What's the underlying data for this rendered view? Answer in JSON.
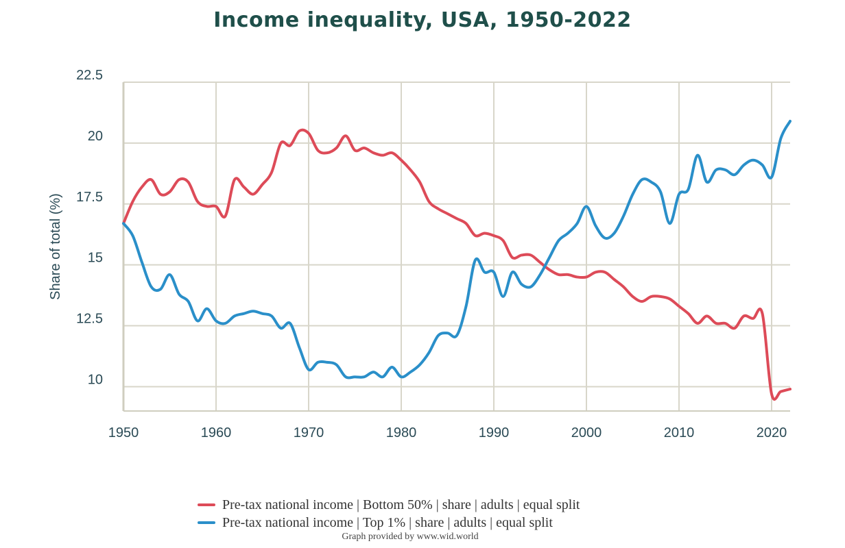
{
  "chart_data": {
    "type": "line",
    "title": "Income inequality, USA, 1950-2022",
    "ylabel": "Share of total (%)",
    "xlabel": "",
    "xlim": [
      1950,
      2022
    ],
    "ylim": [
      9,
      22.5
    ],
    "x_ticks": [
      1950,
      1960,
      1970,
      1980,
      1990,
      2000,
      2010,
      2020
    ],
    "y_ticks": [
      10,
      12.5,
      15,
      17.5,
      20,
      22.5
    ],
    "y_tick_labels": [
      "10",
      "12.5",
      "15",
      "17.5",
      "20",
      "22.5"
    ],
    "grid": true,
    "legend_position": "bottom",
    "series": [
      {
        "name": "Pre-tax national income | Bottom 50% | share | adults | equal split",
        "color": "#dd4b58",
        "x": [
          1950,
          1951,
          1952,
          1953,
          1954,
          1955,
          1956,
          1957,
          1958,
          1959,
          1960,
          1961,
          1962,
          1963,
          1964,
          1965,
          1966,
          1967,
          1968,
          1969,
          1970,
          1971,
          1972,
          1973,
          1974,
          1975,
          1976,
          1977,
          1978,
          1979,
          1980,
          1981,
          1982,
          1983,
          1984,
          1985,
          1986,
          1987,
          1988,
          1989,
          1990,
          1991,
          1992,
          1993,
          1994,
          1995,
          1996,
          1997,
          1998,
          1999,
          2000,
          2001,
          2002,
          2003,
          2004,
          2005,
          2006,
          2007,
          2008,
          2009,
          2010,
          2011,
          2012,
          2013,
          2014,
          2015,
          2016,
          2017,
          2018,
          2019,
          2020,
          2021,
          2022
        ],
        "values": [
          16.7,
          17.6,
          18.2,
          18.5,
          17.9,
          18.0,
          18.5,
          18.4,
          17.6,
          17.4,
          17.4,
          17.0,
          18.5,
          18.2,
          17.9,
          18.3,
          18.8,
          20.0,
          19.9,
          20.5,
          20.4,
          19.7,
          19.6,
          19.8,
          20.3,
          19.7,
          19.8,
          19.6,
          19.5,
          19.6,
          19.3,
          18.9,
          18.4,
          17.6,
          17.3,
          17.1,
          16.9,
          16.7,
          16.2,
          16.3,
          16.2,
          16.0,
          15.3,
          15.4,
          15.4,
          15.1,
          14.8,
          14.6,
          14.6,
          14.5,
          14.5,
          14.7,
          14.7,
          14.4,
          14.1,
          13.7,
          13.5,
          13.7,
          13.7,
          13.6,
          13.3,
          13.0,
          12.6,
          12.9,
          12.6,
          12.6,
          12.4,
          12.9,
          12.8,
          13.0,
          9.7,
          9.8,
          9.9
        ]
      },
      {
        "name": "Pre-tax national income | Top 1% | share | adults | equal split",
        "color": "#2a8fc9",
        "x": [
          1950,
          1951,
          1952,
          1953,
          1954,
          1955,
          1956,
          1957,
          1958,
          1959,
          1960,
          1961,
          1962,
          1963,
          1964,
          1965,
          1966,
          1967,
          1968,
          1969,
          1970,
          1971,
          1972,
          1973,
          1974,
          1975,
          1976,
          1977,
          1978,
          1979,
          1980,
          1981,
          1982,
          1983,
          1984,
          1985,
          1986,
          1987,
          1988,
          1989,
          1990,
          1991,
          1992,
          1993,
          1994,
          1995,
          1996,
          1997,
          1998,
          1999,
          2000,
          2001,
          2002,
          2003,
          2004,
          2005,
          2006,
          2007,
          2008,
          2009,
          2010,
          2011,
          2012,
          2013,
          2014,
          2015,
          2016,
          2017,
          2018,
          2019,
          2020,
          2021,
          2022
        ],
        "values": [
          16.7,
          16.2,
          15.1,
          14.1,
          14.0,
          14.6,
          13.8,
          13.5,
          12.7,
          13.2,
          12.7,
          12.6,
          12.9,
          13.0,
          13.1,
          13.0,
          12.9,
          12.4,
          12.6,
          11.6,
          10.7,
          11.0,
          11.0,
          10.9,
          10.4,
          10.4,
          10.4,
          10.6,
          10.4,
          10.8,
          10.4,
          10.6,
          10.9,
          11.4,
          12.1,
          12.2,
          12.1,
          13.3,
          15.2,
          14.7,
          14.7,
          13.7,
          14.7,
          14.2,
          14.1,
          14.6,
          15.3,
          16.0,
          16.3,
          16.7,
          17.4,
          16.6,
          16.1,
          16.3,
          17.0,
          17.9,
          18.5,
          18.4,
          18.0,
          16.7,
          17.9,
          18.1,
          19.5,
          18.4,
          18.9,
          18.9,
          18.7,
          19.1,
          19.3,
          19.1,
          18.6,
          20.2,
          20.9
        ]
      }
    ]
  },
  "credit": "Graph provided by www.wid.world"
}
